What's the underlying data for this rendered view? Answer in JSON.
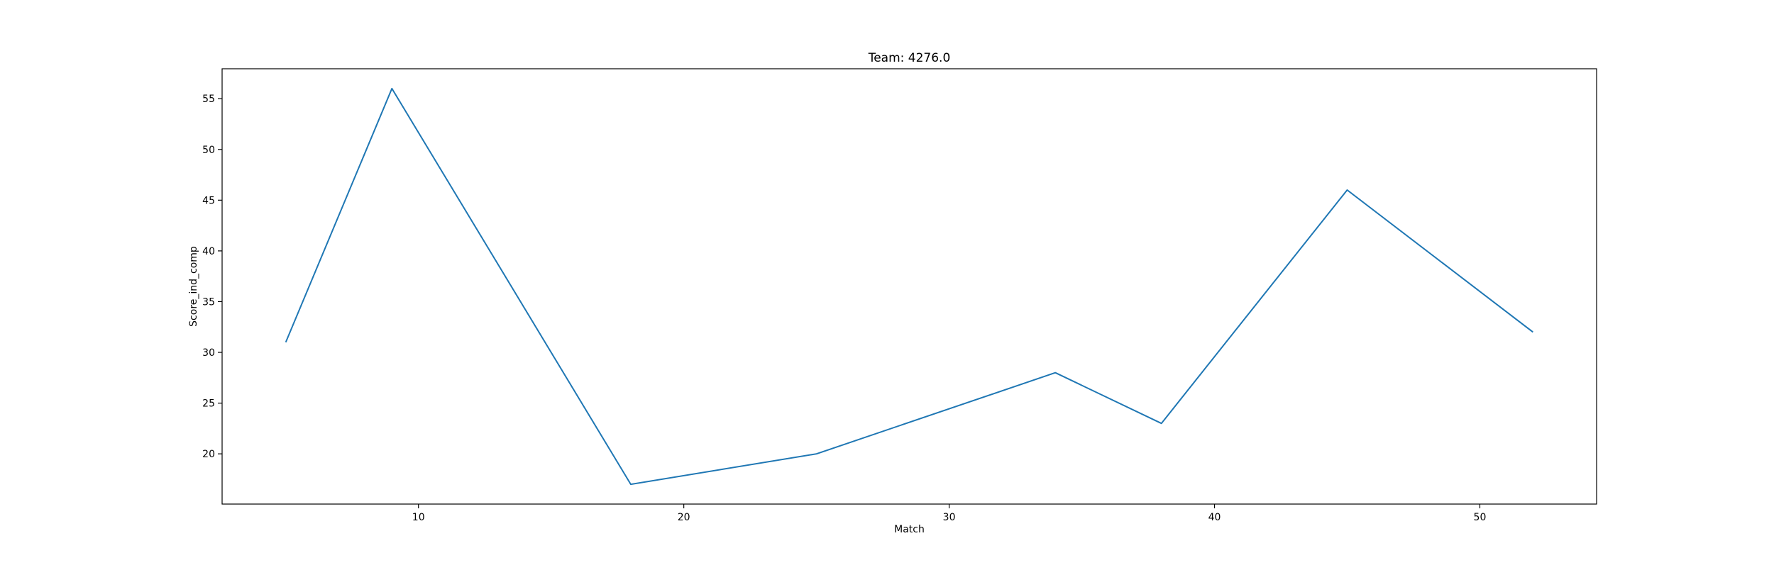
{
  "chart_data": {
    "type": "line",
    "title": "Team: 4276.0",
    "xlabel": "Match",
    "ylabel": "Score_ind_comp",
    "xlim": [
      2.6,
      54.4
    ],
    "ylim": [
      15.05,
      57.95
    ],
    "xticks": [
      10,
      20,
      30,
      40,
      50
    ],
    "yticks": [
      20,
      25,
      30,
      35,
      40,
      45,
      50,
      55
    ],
    "grid": false,
    "series": [
      {
        "x": [
          5,
          9,
          18,
          25,
          34,
          38,
          45,
          52
        ],
        "values": [
          31,
          56,
          17,
          20,
          28,
          23,
          46,
          32
        ],
        "color": "#1f77b4"
      }
    ]
  }
}
